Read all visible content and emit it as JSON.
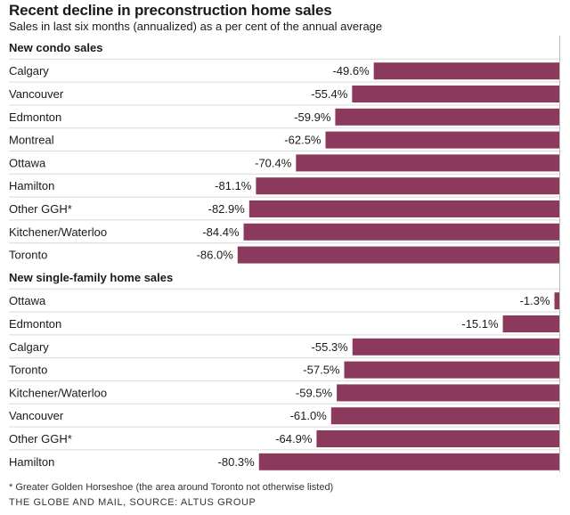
{
  "chart_data": {
    "type": "bar",
    "orientation": "horizontal",
    "title": "Recent decline in preconstruction home sales",
    "subtitle": "Sales in last six months (annualized) as a per cent of the annual average",
    "xlim": [
      -100,
      0
    ],
    "bar_color": "#8b3a5e",
    "value_suffix": "%",
    "groups": [
      {
        "name": "New condo sales",
        "categories": [
          "Calgary",
          "Vancouver",
          "Edmonton",
          "Montreal",
          "Ottawa",
          "Hamilton",
          "Other GGH*",
          "Kitchener/Waterloo",
          "Toronto"
        ],
        "values": [
          -49.6,
          -55.4,
          -59.9,
          -62.5,
          -70.4,
          -81.1,
          -82.9,
          -84.4,
          -86.0
        ]
      },
      {
        "name": "New single-family home sales",
        "categories": [
          "Ottawa",
          "Edmonton",
          "Calgary",
          "Toronto",
          "Kitchener/Waterloo",
          "Vancouver",
          "Other GGH*",
          "Hamilton"
        ],
        "values": [
          -1.3,
          -15.1,
          -55.3,
          -57.5,
          -59.5,
          -61.0,
          -64.9,
          -80.3
        ]
      }
    ]
  },
  "footnote": "* Greater Golden Horseshoe (the area around Toronto not otherwise listed)",
  "source": "THE GLOBE AND MAIL, SOURCE: ALTUS GROUP"
}
